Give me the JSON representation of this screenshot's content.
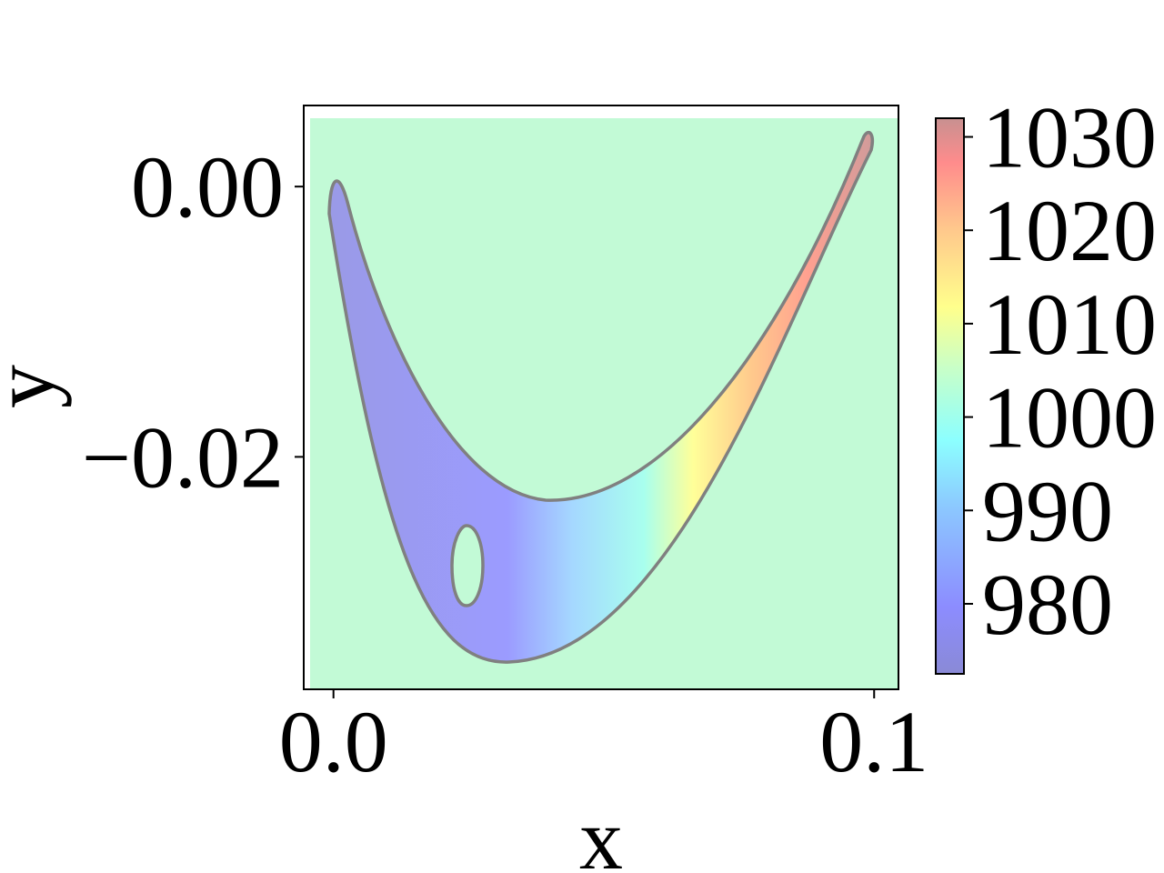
{
  "chart_data": {
    "type": "heatmap",
    "title": "",
    "xlabel": "x",
    "ylabel": "y",
    "xlim": [
      -0.0055,
      0.1045
    ],
    "ylim": [
      -0.0372,
      0.006
    ],
    "x_ticks": [
      {
        "value": 0.0,
        "label": "0.0"
      },
      {
        "value": 0.1,
        "label": "0.1"
      }
    ],
    "y_ticks": [
      {
        "value": 0.0,
        "label": "0.00"
      },
      {
        "value": -0.02,
        "label": "−0.02"
      }
    ],
    "background_value": 1000,
    "field_description_values": {
      "left_region_value": 980,
      "right_tip_value": 1030
    },
    "colorbar": {
      "colormap": "jet",
      "alpha": 0.45,
      "range": [
        972.5,
        1032
      ],
      "ticks": [
        {
          "value": 980,
          "label": "980"
        },
        {
          "value": 990,
          "label": "990"
        },
        {
          "value": 1000,
          "label": "1000"
        },
        {
          "value": 1010,
          "label": "1010"
        },
        {
          "value": 1020,
          "label": "1020"
        },
        {
          "value": 1030,
          "label": "1030"
        }
      ]
    },
    "shape_outline_color": "#808080",
    "axes_color": "#000000"
  }
}
